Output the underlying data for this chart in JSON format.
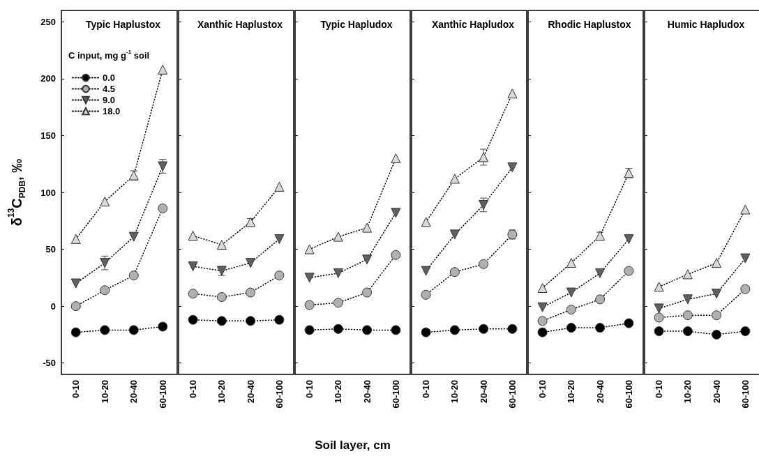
{
  "chart_data": [
    {
      "type": "line",
      "title": "Typic Haplustox",
      "ylabel": "δ$^{13}$C$_{PDB}$, ‰",
      "legend_title": "C input, mg g$^{-1}$ soil",
      "legend": "top left",
      "categories": [
        "0-10",
        "10-20",
        "20-40",
        "60-100"
      ],
      "ylim": [
        -60,
        260
      ],
      "yticks": [
        -50,
        0,
        50,
        100,
        150,
        200,
        250
      ],
      "grid": false,
      "line_style": "dotted",
      "series": [
        {
          "name": "0.0",
          "color": "#000000",
          "marker": "circle",
          "values": [
            -23,
            -21,
            -21,
            -18
          ]
        },
        {
          "name": "4.5",
          "color": "#b0b0b0",
          "marker": "circle",
          "values": [
            0,
            14,
            27,
            86
          ]
        },
        {
          "name": "9.0",
          "color": "#606060",
          "marker": "triangle-down",
          "values": [
            20,
            38,
            61,
            123
          ],
          "errors": [
            null,
            6,
            null,
            6
          ]
        },
        {
          "name": "18.0",
          "color": "#d8d8d8",
          "marker": "triangle",
          "values": [
            59,
            92,
            115,
            208
          ],
          "errors": [
            null,
            null,
            4,
            null
          ]
        }
      ]
    },
    {
      "type": "line",
      "title": "Xanthic Haplustox",
      "categories": [
        "0-10",
        "10-20",
        "20-40",
        "60-100"
      ],
      "ylim": [
        -60,
        260
      ],
      "yticks": [
        -50,
        0,
        50,
        100,
        150,
        200,
        250
      ],
      "tick_labels": "x",
      "grid": false,
      "line_style": "dotted",
      "series": [
        {
          "color": "#000000",
          "marker": "circle",
          "values": [
            -12,
            -13,
            -13,
            -12
          ]
        },
        {
          "color": "#b0b0b0",
          "marker": "circle",
          "values": [
            11,
            8,
            12,
            27
          ]
        },
        {
          "color": "#606060",
          "marker": "triangle-down",
          "values": [
            35,
            31,
            38,
            59
          ],
          "errors": [
            null,
            4,
            null,
            null
          ]
        },
        {
          "color": "#d8d8d8",
          "marker": "triangle",
          "values": [
            62,
            54,
            74,
            105
          ],
          "errors": [
            null,
            null,
            3,
            null
          ]
        }
      ]
    },
    {
      "type": "line",
      "title": "Typic Hapludox",
      "xlabel": "Soil layer, cm",
      "categories": [
        "0-10",
        "10-20",
        "20-40",
        "60-100"
      ],
      "ylim": [
        -60,
        260
      ],
      "yticks": [
        -50,
        0,
        50,
        100,
        150,
        200,
        250
      ],
      "tick_labels": "x",
      "grid": false,
      "line_style": "dotted",
      "series": [
        {
          "color": "#000000",
          "marker": "circle",
          "values": [
            -21,
            -20,
            -21,
            -21
          ]
        },
        {
          "color": "#b0b0b0",
          "marker": "circle",
          "values": [
            1,
            3,
            12,
            45
          ]
        },
        {
          "color": "#606060",
          "marker": "triangle-down",
          "values": [
            25,
            29,
            41,
            82
          ]
        },
        {
          "color": "#d8d8d8",
          "marker": "triangle",
          "values": [
            50,
            61,
            69,
            130
          ]
        }
      ]
    },
    {
      "type": "line",
      "title": "Xanthic Hapludox",
      "categories": [
        "0-10",
        "10-20",
        "20-40",
        "60-100"
      ],
      "ylim": [
        -60,
        260
      ],
      "yticks": [
        -50,
        0,
        50,
        100,
        150,
        200,
        250
      ],
      "tick_labels": "x",
      "grid": false,
      "line_style": "dotted",
      "series": [
        {
          "color": "#000000",
          "marker": "circle",
          "values": [
            -23,
            -21,
            -20,
            -20
          ]
        },
        {
          "color": "#b0b0b0",
          "marker": "circle",
          "values": [
            10,
            30,
            37,
            63
          ],
          "errors": [
            null,
            null,
            null,
            4
          ]
        },
        {
          "color": "#606060",
          "marker": "triangle-down",
          "values": [
            31,
            63,
            89,
            122
          ],
          "errors": [
            null,
            null,
            6,
            null
          ]
        },
        {
          "color": "#d8d8d8",
          "marker": "triangle",
          "values": [
            74,
            112,
            131,
            187
          ],
          "errors": [
            null,
            null,
            7,
            null
          ]
        }
      ]
    },
    {
      "type": "line",
      "title": "Rhodic Haplustox",
      "categories": [
        "0-10",
        "10-20",
        "20-40",
        "60-100"
      ],
      "ylim": [
        -60,
        260
      ],
      "yticks": [
        -50,
        0,
        50,
        100,
        150,
        200,
        250
      ],
      "tick_labels": "x",
      "grid": false,
      "line_style": "dotted",
      "series": [
        {
          "color": "#000000",
          "marker": "circle",
          "values": [
            -23,
            -19,
            -19,
            -15
          ]
        },
        {
          "color": "#b0b0b0",
          "marker": "circle",
          "values": [
            -13,
            -3,
            6,
            31
          ]
        },
        {
          "color": "#606060",
          "marker": "triangle-down",
          "values": [
            -1,
            12,
            29,
            59
          ]
        },
        {
          "color": "#d8d8d8",
          "marker": "triangle",
          "values": [
            16,
            38,
            62,
            117
          ],
          "errors": [
            null,
            null,
            3,
            4
          ]
        }
      ]
    },
    {
      "type": "line",
      "title": "Humic Hapludox",
      "categories": [
        "0-10",
        "10-20",
        "20-40",
        "60-100"
      ],
      "ylim": [
        -60,
        260
      ],
      "yticks": [
        -50,
        0,
        50,
        100,
        150,
        200,
        250
      ],
      "tick_labels": "x",
      "grid": false,
      "line_style": "dotted",
      "series": [
        {
          "color": "#000000",
          "marker": "circle",
          "values": [
            -22,
            -22,
            -25,
            -22
          ]
        },
        {
          "color": "#b0b0b0",
          "marker": "circle",
          "values": [
            -10,
            -8,
            -8,
            15
          ]
        },
        {
          "color": "#606060",
          "marker": "triangle-down",
          "values": [
            -2,
            6,
            11,
            42
          ]
        },
        {
          "color": "#d8d8d8",
          "marker": "triangle",
          "values": [
            17,
            28,
            38,
            85
          ]
        }
      ]
    }
  ]
}
